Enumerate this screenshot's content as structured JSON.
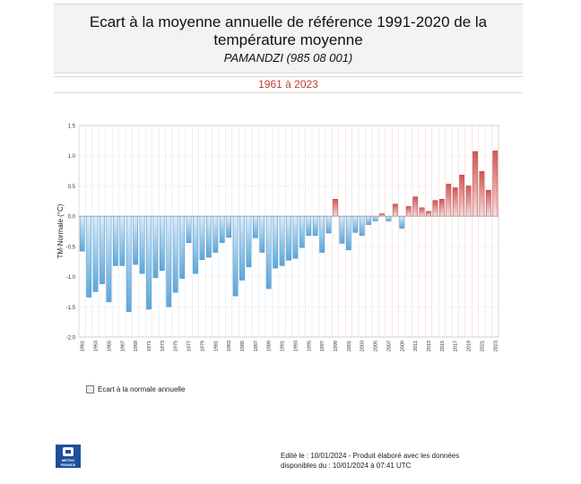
{
  "header": {
    "title_line1": "Ecart à la moyenne annuelle de référence 1991-2020 de la",
    "title_line2": "température moyenne",
    "station": "PAMANDZI (985 08 001)",
    "period": "1961 à 2023"
  },
  "legend": {
    "label": "Ecart à la normale annuelle"
  },
  "logo": {
    "text_line1": "METEO",
    "text_line2": "FRANCE",
    "icon": "meteo-france-logo-icon"
  },
  "footer": {
    "line1": "Edité le : 10/01/2024 - Produit élaboré avec les données",
    "line2": "disponibles du : 10/01/2024 à 07:41 UTC"
  },
  "colors": {
    "negative_dark": "#5ba7dc",
    "negative_light": "#d9ecfa",
    "positive_dark": "#d65454",
    "positive_light": "#f8dcdc",
    "bar_stroke_neg": "#4f8fbf",
    "bar_stroke_pos": "#b04848"
  },
  "chart_data": {
    "type": "bar",
    "ylabel": "TM-Normale (°C)",
    "xlabel": "",
    "ylim": [
      -2.0,
      1.5
    ],
    "yticks": [
      "1.5",
      "1.0",
      "0.5",
      "0.0",
      "-0.5",
      "-1.0",
      "-1.5",
      "-2.0"
    ],
    "ytick_values": [
      1.5,
      1.0,
      0.5,
      0.0,
      -0.5,
      -1.0,
      -1.5,
      -2.0
    ],
    "grid": true,
    "legend_position": "bottom-left",
    "categories": [
      "1961",
      "1962",
      "1963",
      "1964",
      "1965",
      "1966",
      "1967",
      "1968",
      "1969",
      "1970",
      "1971",
      "1972",
      "1973",
      "1974",
      "1975",
      "1976",
      "1977",
      "1978",
      "1979",
      "1980",
      "1981",
      "1982",
      "1983",
      "1984",
      "1985",
      "1986",
      "1987",
      "1988",
      "1989",
      "1990",
      "1991",
      "1992",
      "1993",
      "1994",
      "1995",
      "1996",
      "1997",
      "1998",
      "1999",
      "2000",
      "2001",
      "2002",
      "2003",
      "2004",
      "2005",
      "2006",
      "2007",
      "2008",
      "2009",
      "2010",
      "2011",
      "2012",
      "2013",
      "2014",
      "2015",
      "2016",
      "2017",
      "2018",
      "2019",
      "2020",
      "2021",
      "2022",
      "2023"
    ],
    "xtick_labels": [
      "1961",
      "1963",
      "1965",
      "1967",
      "1969",
      "1971",
      "1973",
      "1975",
      "1977",
      "1979",
      "1981",
      "1983",
      "1985",
      "1987",
      "1989",
      "1991",
      "1993",
      "1995",
      "1997",
      "1999",
      "2001",
      "2003",
      "2005",
      "2007",
      "2009",
      "2011",
      "2013",
      "2015",
      "2017",
      "2019",
      "2021",
      "2023"
    ],
    "values": [
      -0.58,
      -1.34,
      -1.25,
      -1.12,
      -1.42,
      -0.82,
      -0.82,
      -1.58,
      -0.8,
      -0.95,
      -1.54,
      -1.02,
      -0.9,
      -1.5,
      -1.26,
      -1.03,
      -0.44,
      -0.95,
      -0.72,
      -0.68,
      -0.6,
      -0.44,
      -0.35,
      -1.32,
      -1.06,
      -0.84,
      -0.36,
      -0.6,
      -1.2,
      -0.86,
      -0.82,
      -0.73,
      -0.7,
      -0.52,
      -0.32,
      -0.32,
      -0.6,
      -0.28,
      0.28,
      -0.45,
      -0.56,
      -0.27,
      -0.32,
      -0.14,
      -0.08,
      0.04,
      -0.08,
      0.2,
      -0.2,
      0.16,
      0.32,
      0.14,
      0.08,
      0.26,
      0.28,
      0.53,
      0.47,
      0.68,
      0.5,
      1.07,
      0.74,
      0.43,
      1.08
    ]
  }
}
